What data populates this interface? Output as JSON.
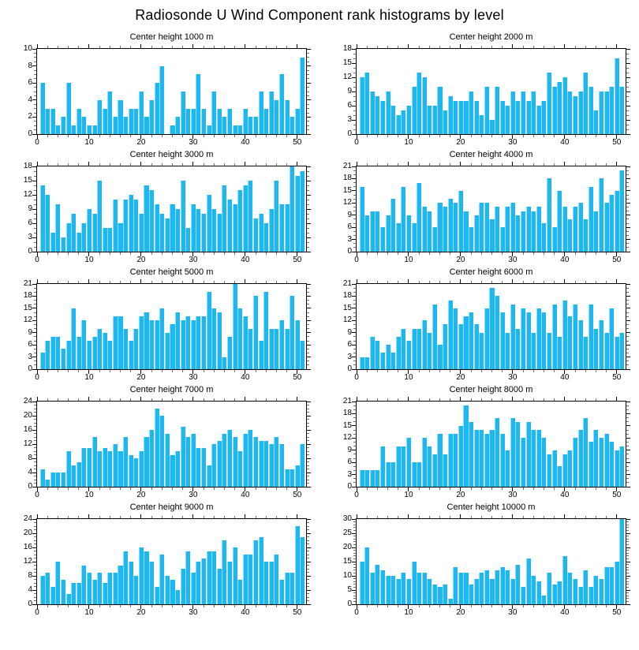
{
  "title": "Radiosonde U Wind Component rank histograms by level",
  "bar_color": "#1eb7f1",
  "bar_highlight_color": "#8ce0fb",
  "axis_color": "#000000",
  "minor_tick_color": "#6e6e6e",
  "x_axis": {
    "min": 0,
    "max": 51.7,
    "labels": [
      0,
      10,
      20,
      30,
      40,
      50
    ],
    "minor_step": 2
  },
  "chart_data": [
    {
      "type": "bar",
      "title": "Center height 1000 m",
      "x_start": 1,
      "ylim": [
        0,
        10
      ],
      "ystep": 2,
      "yminor": 0.5,
      "yticks": [
        0,
        2,
        4,
        6,
        8,
        10
      ],
      "values": [
        6,
        3,
        3,
        1,
        2,
        6,
        1,
        3,
        2,
        1,
        1,
        4,
        3,
        5,
        2,
        4,
        2,
        3,
        3,
        5,
        2,
        4,
        6,
        8,
        0,
        1,
        2,
        5,
        3,
        3,
        7,
        3,
        1,
        5,
        3,
        2,
        3,
        1,
        1,
        3,
        2,
        2,
        5,
        3,
        5,
        4,
        7,
        4,
        2,
        3,
        9
      ]
    },
    {
      "type": "bar",
      "title": "Center height 2000 m",
      "x_start": 1,
      "ylim": [
        0,
        18
      ],
      "ystep": 3,
      "yminor": 1,
      "yticks": [
        0,
        3,
        6,
        9,
        12,
        15,
        18
      ],
      "values": [
        12,
        13,
        9,
        8,
        7,
        9,
        6,
        4,
        5,
        6,
        10,
        13,
        12,
        6,
        6,
        10,
        5,
        8,
        7,
        7,
        7,
        9,
        7,
        4,
        10,
        3,
        10,
        7,
        6,
        9,
        7,
        9,
        7,
        9,
        6,
        7,
        13,
        10,
        11,
        12,
        9,
        8,
        9,
        13,
        10,
        5,
        9,
        9,
        10,
        16,
        10
      ]
    },
    {
      "type": "bar",
      "title": "Center height 3000 m",
      "x_start": 1,
      "ylim": [
        0,
        18
      ],
      "ystep": 3,
      "yminor": 1,
      "yticks": [
        0,
        3,
        6,
        9,
        12,
        15,
        18
      ],
      "values": [
        14,
        12,
        4,
        10,
        3,
        6,
        8,
        4,
        6,
        9,
        8,
        15,
        5,
        5,
        11,
        6,
        11,
        12,
        11,
        8,
        14,
        13,
        10,
        8,
        7,
        10,
        9,
        15,
        5,
        10,
        9,
        8,
        12,
        9,
        8,
        14,
        11,
        10,
        13,
        14,
        15,
        7,
        8,
        6,
        9,
        15,
        10,
        10,
        18,
        16,
        17
      ]
    },
    {
      "type": "bar",
      "title": "Center height 4000 m",
      "x_start": 1,
      "ylim": [
        0,
        21
      ],
      "ystep": 3,
      "yminor": 1,
      "yticks": [
        0,
        3,
        6,
        9,
        12,
        15,
        18,
        21
      ],
      "values": [
        16,
        9,
        10,
        10,
        6,
        9,
        13,
        7,
        16,
        9,
        7,
        17,
        11,
        10,
        6,
        12,
        11,
        13,
        12,
        15,
        10,
        6,
        9,
        12,
        12,
        8,
        11,
        6,
        11,
        12,
        9,
        10,
        11,
        10,
        11,
        7,
        18,
        6,
        15,
        11,
        8,
        11,
        12,
        8,
        16,
        10,
        18,
        12,
        14,
        15,
        20
      ]
    },
    {
      "type": "bar",
      "title": "Center height 5000 m",
      "x_start": 1,
      "ylim": [
        0,
        21
      ],
      "ystep": 3,
      "yminor": 1,
      "yticks": [
        0,
        3,
        6,
        9,
        12,
        15,
        18,
        21
      ],
      "values": [
        4,
        7,
        8,
        8,
        5,
        7,
        15,
        8,
        12,
        7,
        8,
        10,
        9,
        7,
        13,
        13,
        10,
        7,
        10,
        13,
        14,
        12,
        12,
        15,
        9,
        11,
        14,
        12,
        13,
        12,
        13,
        13,
        19,
        15,
        14,
        3,
        8,
        21,
        15,
        13,
        10,
        18,
        7,
        19,
        10,
        10,
        12,
        10,
        18,
        12,
        7
      ]
    },
    {
      "type": "bar",
      "title": "Center height 6000 m",
      "x_start": 1,
      "ylim": [
        0,
        21
      ],
      "ystep": 3,
      "yminor": 1,
      "yticks": [
        0,
        3,
        6,
        9,
        12,
        15,
        18,
        21
      ],
      "values": [
        3,
        3,
        8,
        7,
        4,
        6,
        4,
        8,
        10,
        7,
        10,
        10,
        12,
        9,
        16,
        6,
        11,
        17,
        15,
        11,
        13,
        14,
        11,
        9,
        15,
        20,
        18,
        14,
        9,
        16,
        10,
        15,
        14,
        9,
        15,
        14,
        9,
        16,
        8,
        17,
        13,
        16,
        12,
        8,
        16,
        10,
        12,
        9,
        15,
        8,
        9
      ]
    },
    {
      "type": "bar",
      "title": "Center height 7000 m",
      "x_start": 1,
      "ylim": [
        0,
        24
      ],
      "ystep": 4,
      "yminor": 1,
      "yticks": [
        0,
        4,
        8,
        12,
        16,
        20,
        24
      ],
      "values": [
        5,
        2,
        4,
        4,
        4,
        10,
        6,
        7,
        11,
        11,
        14,
        10,
        11,
        10,
        12,
        10,
        14,
        9,
        8,
        10,
        14,
        16,
        22,
        20,
        15,
        9,
        10,
        17,
        14,
        15,
        11,
        11,
        6,
        12,
        13,
        15,
        16,
        14,
        10,
        15,
        16,
        14,
        13,
        13,
        12,
        14,
        12,
        5,
        5,
        6,
        12
      ]
    },
    {
      "type": "bar",
      "title": "Center height 8000 m",
      "x_start": 1,
      "ylim": [
        0,
        21
      ],
      "ystep": 3,
      "yminor": 1,
      "yticks": [
        0,
        3,
        6,
        9,
        12,
        15,
        18,
        21
      ],
      "values": [
        4,
        4,
        4,
        4,
        10,
        6,
        6,
        10,
        10,
        12,
        6,
        6,
        12,
        10,
        8,
        13,
        8,
        13,
        13,
        15,
        20,
        16,
        14,
        14,
        13,
        14,
        17,
        13,
        9,
        17,
        16,
        12,
        16,
        14,
        14,
        12,
        8,
        9,
        5,
        8,
        9,
        12,
        14,
        17,
        11,
        14,
        12,
        13,
        11,
        9,
        10
      ]
    },
    {
      "type": "bar",
      "title": "Center height 9000 m",
      "x_start": 1,
      "ylim": [
        0,
        24
      ],
      "ystep": 4,
      "yminor": 1,
      "yticks": [
        0,
        4,
        8,
        12,
        16,
        20,
        24
      ],
      "values": [
        8,
        9,
        5,
        12,
        7,
        3,
        6,
        6,
        11,
        9,
        7,
        9,
        6,
        9,
        9,
        11,
        15,
        12,
        8,
        16,
        15,
        12,
        5,
        14,
        8,
        7,
        4,
        10,
        15,
        9,
        12,
        13,
        15,
        15,
        10,
        18,
        12,
        16,
        7,
        14,
        14,
        18,
        19,
        12,
        12,
        14,
        7,
        9,
        9,
        22,
        19
      ]
    },
    {
      "type": "bar",
      "title": "Center height 10000 m",
      "x_start": 1,
      "ylim": [
        0,
        30
      ],
      "ystep": 5,
      "yminor": 1,
      "yticks": [
        0,
        5,
        10,
        15,
        20,
        25,
        30
      ],
      "values": [
        15,
        20,
        11,
        14,
        12,
        10,
        10,
        9,
        11,
        9,
        15,
        11,
        11,
        9,
        7,
        6,
        7,
        2,
        13,
        11,
        11,
        7,
        9,
        11,
        12,
        9,
        12,
        13,
        12,
        9,
        14,
        6,
        16,
        10,
        8,
        3,
        11,
        7,
        8,
        17,
        11,
        9,
        6,
        12,
        6,
        10,
        9,
        13,
        13,
        15,
        30
      ]
    }
  ]
}
